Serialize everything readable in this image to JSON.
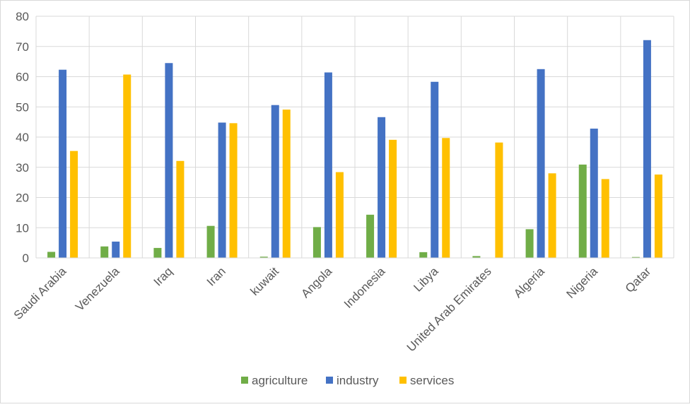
{
  "chart_data": {
    "type": "bar",
    "title": "",
    "xlabel": "",
    "ylabel": "",
    "ylim": [
      0,
      80
    ],
    "yticks": [
      "0",
      "10",
      "20",
      "30",
      "40",
      "50",
      "60",
      "70",
      "80"
    ],
    "grid": true,
    "legend_position": "bottom",
    "categories": [
      "Saudi Arabia",
      "Venezuela",
      "Iraq",
      "Iran",
      "kuwait",
      "Angola",
      "Indonesia",
      "Libya",
      "United Arab Emirates",
      "Algeria",
      "Nigeria",
      "Qatar"
    ],
    "series": [
      {
        "name": "agriculture",
        "color": "#70AD47",
        "values": [
          2.0,
          3.8,
          3.3,
          10.6,
          0.4,
          10.2,
          14.3,
          1.9,
          0.6,
          9.5,
          30.9,
          0.3
        ]
      },
      {
        "name": "industry",
        "color": "#4472C4",
        "values": [
          62.3,
          5.4,
          64.5,
          44.8,
          50.6,
          61.4,
          46.6,
          58.3,
          0,
          62.5,
          42.8,
          72.1
        ]
      },
      {
        "name": "services",
        "color": "#FFC000",
        "values": [
          35.4,
          60.7,
          32.1,
          44.6,
          49.1,
          28.4,
          39.1,
          39.7,
          38.2,
          28.0,
          26.1,
          27.6
        ]
      }
    ]
  }
}
